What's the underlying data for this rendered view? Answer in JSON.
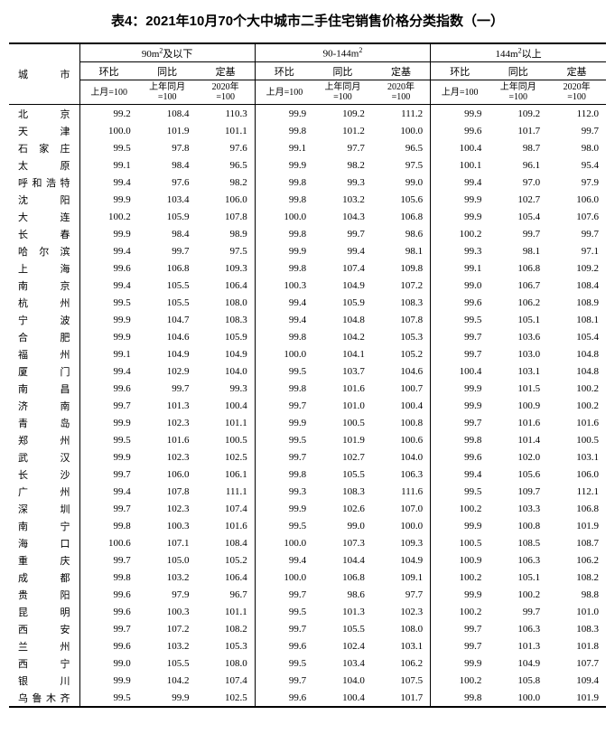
{
  "title_prefix": "表4：2021年10月70个大中城市二手住宅销售价格分类指数（一）",
  "header": {
    "city": "城市",
    "groups": [
      "90m²及以下",
      "90-144m²",
      "144m²以上"
    ],
    "subcols": [
      "环比",
      "同比",
      "定基"
    ],
    "basis": [
      "上月=100",
      "上年同月=100",
      "2020年=100"
    ]
  },
  "rows": [
    {
      "c": "北　　京",
      "v": [
        99.2,
        108.4,
        110.3,
        99.9,
        109.2,
        111.2,
        99.9,
        109.2,
        112.0
      ]
    },
    {
      "c": "天　　津",
      "v": [
        100.0,
        101.9,
        101.1,
        99.8,
        101.2,
        100.0,
        99.6,
        101.7,
        99.7
      ]
    },
    {
      "c": "石 家 庄",
      "v": [
        99.5,
        97.8,
        97.6,
        99.1,
        97.7,
        96.5,
        100.4,
        98.7,
        98.0
      ]
    },
    {
      "c": "太　　原",
      "v": [
        99.1,
        98.4,
        96.5,
        99.9,
        98.2,
        97.5,
        100.1,
        96.1,
        95.4
      ]
    },
    {
      "c": "呼和浩特",
      "v": [
        99.4,
        97.6,
        98.2,
        99.8,
        99.3,
        99.0,
        99.4,
        97.0,
        97.9
      ]
    },
    {
      "c": "沈　　阳",
      "v": [
        99.9,
        103.4,
        106.0,
        99.8,
        103.2,
        105.6,
        99.9,
        102.7,
        106.0
      ]
    },
    {
      "c": "大　　连",
      "v": [
        100.2,
        105.9,
        107.8,
        100.0,
        104.3,
        106.8,
        99.9,
        105.4,
        107.6
      ]
    },
    {
      "c": "长　　春",
      "v": [
        99.9,
        98.4,
        98.9,
        99.8,
        99.7,
        98.6,
        100.2,
        99.7,
        99.7
      ]
    },
    {
      "c": "哈 尔 滨",
      "v": [
        99.4,
        99.7,
        97.5,
        99.9,
        99.4,
        98.1,
        99.3,
        98.1,
        97.1
      ]
    },
    {
      "c": "上　　海",
      "v": [
        99.6,
        106.8,
        109.3,
        99.8,
        107.4,
        109.8,
        99.1,
        106.8,
        109.2
      ]
    },
    {
      "c": "南　　京",
      "v": [
        99.4,
        105.5,
        106.4,
        100.3,
        104.9,
        107.2,
        99.0,
        106.7,
        108.4
      ]
    },
    {
      "c": "杭　　州",
      "v": [
        99.5,
        105.5,
        108.0,
        99.4,
        105.9,
        108.3,
        99.6,
        106.2,
        108.9
      ]
    },
    {
      "c": "宁　　波",
      "v": [
        99.9,
        104.7,
        108.3,
        99.4,
        104.8,
        107.8,
        99.5,
        105.1,
        108.1
      ]
    },
    {
      "c": "合　　肥",
      "v": [
        99.9,
        104.6,
        105.9,
        99.8,
        104.2,
        105.3,
        99.7,
        103.6,
        105.4
      ]
    },
    {
      "c": "福　　州",
      "v": [
        99.1,
        104.9,
        104.9,
        100.0,
        104.1,
        105.2,
        99.7,
        103.0,
        104.8
      ]
    },
    {
      "c": "厦　　门",
      "v": [
        99.4,
        102.9,
        104.0,
        99.5,
        103.7,
        104.6,
        100.4,
        103.1,
        104.8
      ]
    },
    {
      "c": "南　　昌",
      "v": [
        99.6,
        99.7,
        99.3,
        99.8,
        101.6,
        100.7,
        99.9,
        101.5,
        100.2
      ]
    },
    {
      "c": "济　　南",
      "v": [
        99.7,
        101.3,
        100.4,
        99.7,
        101.0,
        100.4,
        99.9,
        100.9,
        100.2
      ]
    },
    {
      "c": "青　　岛",
      "v": [
        99.9,
        102.3,
        101.1,
        99.9,
        100.5,
        100.8,
        99.7,
        101.6,
        101.6
      ]
    },
    {
      "c": "郑　　州",
      "v": [
        99.5,
        101.6,
        100.5,
        99.5,
        101.9,
        100.6,
        99.8,
        101.4,
        100.5
      ]
    },
    {
      "c": "武　　汉",
      "v": [
        99.9,
        102.3,
        102.5,
        99.7,
        102.7,
        104.0,
        99.6,
        102.0,
        103.1
      ]
    },
    {
      "c": "长　　沙",
      "v": [
        99.7,
        106.0,
        106.1,
        99.8,
        105.5,
        106.3,
        99.4,
        105.6,
        106.0
      ]
    },
    {
      "c": "广　　州",
      "v": [
        99.4,
        107.8,
        111.1,
        99.3,
        108.3,
        111.6,
        99.5,
        109.7,
        112.1
      ]
    },
    {
      "c": "深　　圳",
      "v": [
        99.7,
        102.3,
        107.4,
        99.9,
        102.6,
        107.0,
        100.2,
        103.3,
        106.8
      ]
    },
    {
      "c": "南　　宁",
      "v": [
        99.8,
        100.3,
        101.6,
        99.5,
        99.0,
        100.0,
        99.9,
        100.8,
        101.9
      ]
    },
    {
      "c": "海　　口",
      "v": [
        100.6,
        107.1,
        108.4,
        100.0,
        107.3,
        109.3,
        100.5,
        108.5,
        108.7
      ]
    },
    {
      "c": "重　　庆",
      "v": [
        99.7,
        105.0,
        105.2,
        99.4,
        104.4,
        104.9,
        100.9,
        106.3,
        106.2
      ]
    },
    {
      "c": "成　　都",
      "v": [
        99.8,
        103.2,
        106.4,
        100.0,
        106.8,
        109.1,
        100.2,
        105.1,
        108.2
      ]
    },
    {
      "c": "贵　　阳",
      "v": [
        99.6,
        97.9,
        96.7,
        99.7,
        98.6,
        97.7,
        99.9,
        100.2,
        98.8
      ]
    },
    {
      "c": "昆　　明",
      "v": [
        99.6,
        100.3,
        101.1,
        99.5,
        101.3,
        102.3,
        100.2,
        99.7,
        101.0
      ]
    },
    {
      "c": "西　　安",
      "v": [
        99.7,
        107.2,
        108.2,
        99.7,
        105.5,
        108.0,
        99.7,
        106.3,
        108.3
      ]
    },
    {
      "c": "兰　　州",
      "v": [
        99.6,
        103.2,
        105.3,
        99.6,
        102.4,
        103.1,
        99.7,
        101.3,
        101.8
      ]
    },
    {
      "c": "西　　宁",
      "v": [
        99.0,
        105.5,
        108.0,
        99.5,
        103.4,
        106.2,
        99.9,
        104.9,
        107.7
      ]
    },
    {
      "c": "银　　川",
      "v": [
        99.9,
        104.2,
        107.4,
        99.7,
        104.0,
        107.5,
        100.2,
        105.8,
        109.4
      ]
    },
    {
      "c": "乌鲁木齐",
      "v": [
        99.5,
        99.9,
        102.5,
        99.6,
        100.4,
        101.7,
        99.8,
        100.0,
        101.9
      ]
    }
  ]
}
